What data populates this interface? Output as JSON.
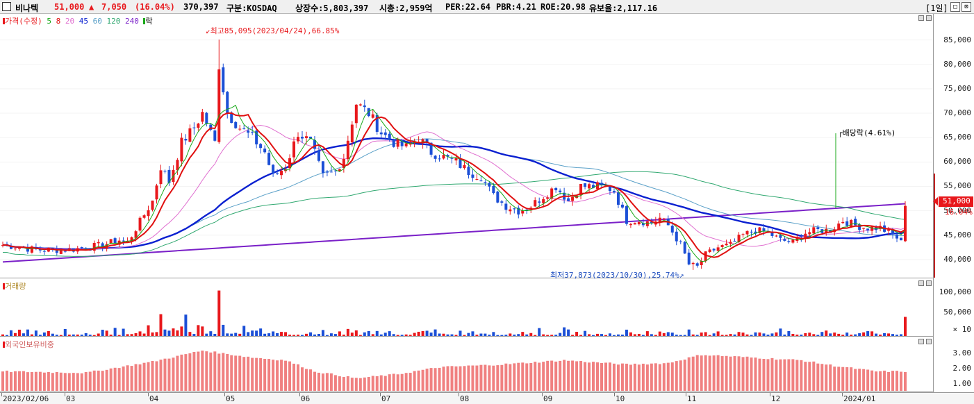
{
  "header": {
    "name": "비나텍",
    "price": "51,000",
    "change_arrow": "▲",
    "change": "7,050",
    "change_pct": "(16.04%)",
    "volume": "370,397",
    "market": "구분:KOSDAQ",
    "shares": "상장수:5,803,397",
    "mcap": "시총:2,959억",
    "per": "PER:22.64",
    "pbr": "PBR:4.21",
    "roe": "ROE:20.98",
    "retention": "유보율:2,117.16",
    "period": "[1일]",
    "btn1": "□",
    "btn2": "⊠"
  },
  "price_panel": {
    "legend": {
      "price": "가격(수정)",
      "ma5": "5",
      "ma8": "8",
      "ma20": "20",
      "ma45": "45",
      "ma60": "60",
      "ma120": "120",
      "ma240": "240",
      "ex": "락"
    },
    "axis_ticks": [
      "85,000",
      "80,000",
      "75,000",
      "70,000",
      "65,000",
      "60,000",
      "55,000",
      "50,000",
      "45,000",
      "40,000"
    ],
    "high_label": "최고85,095(2023/04/24),66.85%",
    "low_label": "최저37,873(2023/10/30),25.74%",
    "dividend_label": "배당락(4.61%)",
    "current_price": "51,000",
    "current_pct": "16.04%"
  },
  "volume_panel": {
    "title": "거래량",
    "axis_ticks": [
      "100,000",
      "50,000"
    ],
    "unit": "× 10"
  },
  "foreign_panel": {
    "title": "외국인보유비중",
    "axis_ticks": [
      "3.00",
      "2.00",
      "1.00"
    ]
  },
  "dates": [
    "2023/02/06",
    "03",
    "04",
    "05",
    "06",
    "07",
    "08",
    "09",
    "10",
    "11",
    "12",
    "2024/01"
  ],
  "colors": {
    "up": "#e8181c",
    "down": "#1b4fd6",
    "ma5": "#18a818",
    "ma8": "#e01010",
    "ma20": "#e070d0",
    "ma45": "#0a20d0",
    "ma60": "#5aa0c8",
    "ma120": "#30a870",
    "ma240": "#7a20c8",
    "foreign": "#f08080"
  },
  "chart_data": {
    "type": "candlestick",
    "y_range": [
      37000,
      87500
    ],
    "anchor_points_close": [
      [
        0,
        43000
      ],
      [
        8,
        42000
      ],
      [
        16,
        42000
      ],
      [
        24,
        43000
      ],
      [
        28,
        44000
      ],
      [
        30,
        43500
      ],
      [
        36,
        52000
      ],
      [
        38,
        59000
      ],
      [
        40,
        56000
      ],
      [
        43,
        64000
      ],
      [
        46,
        67000
      ],
      [
        48,
        70000
      ],
      [
        51,
        64000
      ],
      [
        52,
        80000
      ],
      [
        54,
        70000
      ],
      [
        57,
        67000
      ],
      [
        60,
        65000
      ],
      [
        63,
        62000
      ],
      [
        65,
        57000
      ],
      [
        68,
        59000
      ],
      [
        71,
        66000
      ],
      [
        74,
        64000
      ],
      [
        77,
        57000
      ],
      [
        80,
        58000
      ],
      [
        82,
        61000
      ],
      [
        85,
        72000
      ],
      [
        88,
        70000
      ],
      [
        91,
        66000
      ],
      [
        94,
        64000
      ],
      [
        97,
        63000
      ],
      [
        100,
        65000
      ],
      [
        103,
        62000
      ],
      [
        106,
        61000
      ],
      [
        109,
        60000
      ],
      [
        112,
        58000
      ],
      [
        115,
        57000
      ],
      [
        118,
        53000
      ],
      [
        121,
        51000
      ],
      [
        124,
        50000
      ],
      [
        127,
        51000
      ],
      [
        130,
        53000
      ],
      [
        133,
        55000
      ],
      [
        136,
        52000
      ],
      [
        139,
        55000
      ],
      [
        142,
        55000
      ],
      [
        145,
        55000
      ],
      [
        147,
        54000
      ],
      [
        150,
        48000
      ],
      [
        153,
        48000
      ],
      [
        156,
        47500
      ],
      [
        158,
        48500
      ],
      [
        160,
        47000
      ],
      [
        163,
        43000
      ],
      [
        165,
        39000
      ],
      [
        167,
        38500
      ],
      [
        169,
        41000
      ],
      [
        172,
        42500
      ],
      [
        175,
        43000
      ],
      [
        178,
        45000
      ],
      [
        181,
        46000
      ],
      [
        184,
        45500
      ],
      [
        187,
        44000
      ],
      [
        190,
        43500
      ],
      [
        193,
        45500
      ],
      [
        196,
        46000
      ],
      [
        199,
        46000
      ],
      [
        202,
        48000
      ],
      [
        205,
        47000
      ],
      [
        208,
        46500
      ],
      [
        211,
        46500
      ],
      [
        214,
        45000
      ],
      [
        216,
        43950
      ],
      [
        217,
        51000
      ]
    ],
    "high_marker": {
      "date": "2023/04/24",
      "value": 85095
    },
    "low_marker": {
      "date": "2023/10/30",
      "value": 37873
    },
    "last_close": 51000,
    "last_change_pct": 16.04,
    "foreign_ratio_range": [
      1,
      3.4
    ]
  }
}
